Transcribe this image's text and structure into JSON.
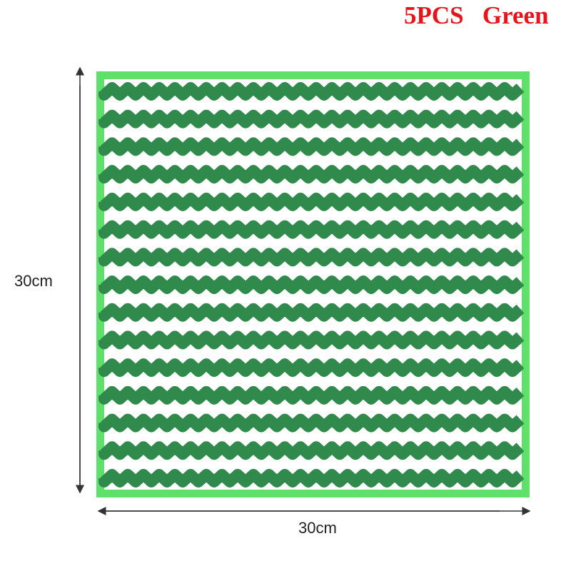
{
  "title": "5PCS   Green",
  "dimensions": {
    "height_label": "30cm",
    "width_label": "30cm"
  },
  "colors": {
    "title": "#e8141b",
    "border": "#5fe06a",
    "stripe": "#2f8a4c",
    "base": "#ffffff"
  },
  "product": {
    "stripe_count": 15
  }
}
